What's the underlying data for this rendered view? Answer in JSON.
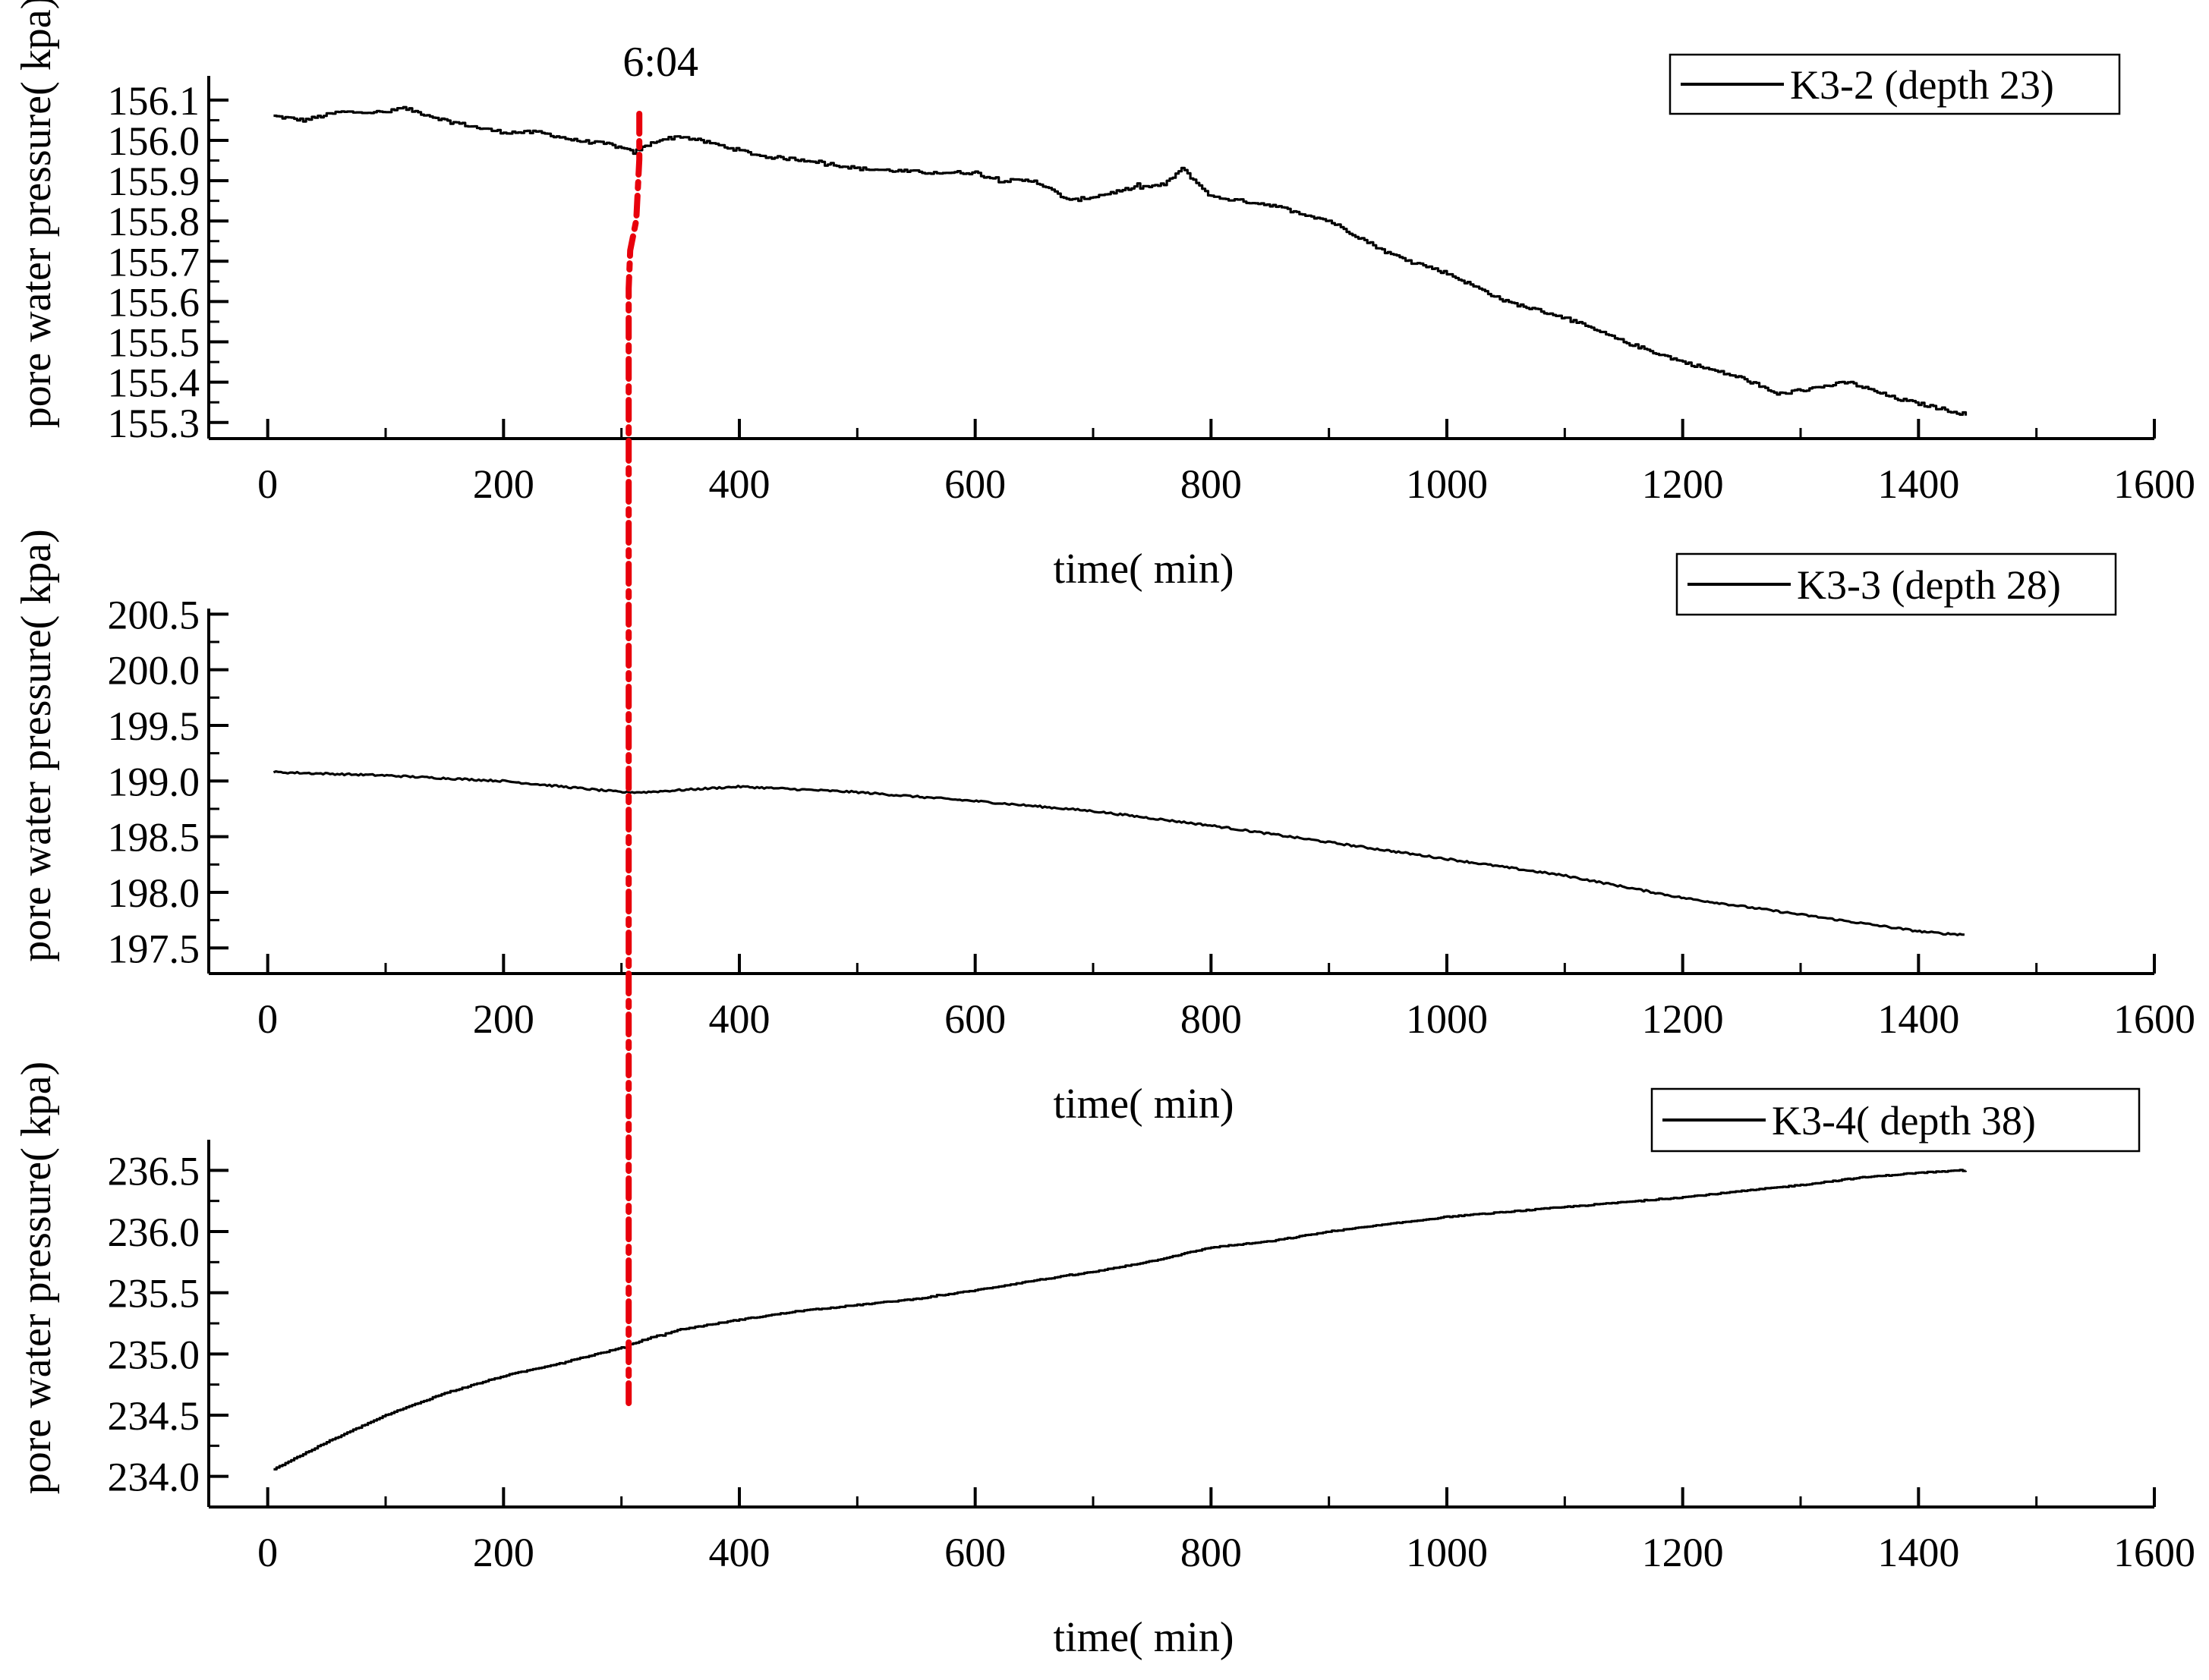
{
  "figure": {
    "annotation": {
      "label": "6:04",
      "x_value": 310,
      "color": "#e8000b"
    }
  },
  "chart_data": [
    {
      "type": "line",
      "title": "",
      "xlabel": "time(   min)",
      "ylabel": "pore water pressure(   kpa)",
      "xlim": [
        -50,
        1600
      ],
      "ylim": [
        155.26,
        156.16
      ],
      "xticks": [
        0,
        200,
        400,
        600,
        800,
        1000,
        1200,
        1400,
        1600
      ],
      "yticks": [
        155.3,
        155.4,
        155.5,
        155.6,
        155.7,
        155.8,
        155.9,
        156.0,
        156.1
      ],
      "ytick_decimals": 1,
      "legend_position": "top-right",
      "series": [
        {
          "name": "K3-2  (depth 23)",
          "noise": 0.004,
          "spikes": null,
          "x": [
            5,
            30,
            60,
            100,
            115,
            150,
            180,
            200,
            230,
            260,
            290,
            310,
            330,
            350,
            380,
            420,
            460,
            500,
            560,
            600,
            620,
            650,
            680,
            700,
            730,
            760,
            775,
            800,
            850,
            900,
            950,
            1000,
            1050,
            1100,
            1150,
            1200,
            1250,
            1280,
            1320,
            1340,
            1380,
            1410,
            1440
          ],
          "y": [
            156.06,
            156.05,
            156.07,
            156.07,
            156.08,
            156.05,
            156.03,
            156.02,
            156.02,
            156.0,
            155.99,
            155.97,
            156.0,
            156.01,
            155.99,
            155.96,
            155.95,
            155.93,
            155.92,
            155.92,
            155.9,
            155.9,
            155.85,
            155.86,
            155.88,
            155.89,
            155.93,
            155.86,
            155.84,
            155.8,
            155.72,
            155.67,
            155.6,
            155.56,
            155.5,
            155.45,
            155.41,
            155.37,
            155.39,
            155.4,
            155.36,
            155.34,
            155.32
          ]
        }
      ]
    },
    {
      "type": "line",
      "title": "",
      "xlabel": "time(   min)",
      "ylabel": "pore water pressure(   kpa)",
      "xlim": [
        -50,
        1600
      ],
      "ylim": [
        197.27,
        200.55
      ],
      "xticks": [
        0,
        200,
        400,
        600,
        800,
        1000,
        1200,
        1400,
        1600
      ],
      "yticks": [
        197.5,
        198.0,
        198.5,
        199.0,
        199.5,
        200.0,
        200.5
      ],
      "ytick_decimals": 1,
      "legend_position": "top-right",
      "series": [
        {
          "name": "K3-3  (depth 28)",
          "noise": 0.008,
          "spikes": {
            "start": 318,
            "step": 4,
            "amp_scale": 0.85
          },
          "x": [
            5,
            100,
            200,
            300,
            320,
            400,
            500,
            600,
            700,
            800,
            900,
            1000,
            1100,
            1200,
            1300,
            1400,
            1420,
            1440
          ],
          "y": [
            199.08,
            199.05,
            199.0,
            198.9,
            198.9,
            198.95,
            198.9,
            198.82,
            198.73,
            198.6,
            198.45,
            198.3,
            198.15,
            197.95,
            197.8,
            197.65,
            197.63,
            197.62
          ]
        }
      ]
    },
    {
      "type": "line",
      "title": "",
      "xlabel": "time(   min)",
      "ylabel": "pore water pressure(   kpa)",
      "xlim": [
        -50,
        1600
      ],
      "ylim": [
        233.75,
        236.75
      ],
      "xticks": [
        0,
        200,
        400,
        600,
        800,
        1000,
        1200,
        1400,
        1600
      ],
      "yticks": [
        234.0,
        234.5,
        235.0,
        235.5,
        236.0,
        236.5
      ],
      "ytick_decimals": 1,
      "legend_position": "top-right",
      "series": [
        {
          "name": "K3-4(   depth 38)",
          "noise": 0.004,
          "spikes": null,
          "x": [
            5,
            50,
            100,
            150,
            200,
            250,
            300,
            320,
            350,
            400,
            450,
            500,
            550,
            600,
            650,
            700,
            750,
            800,
            850,
            900,
            950,
            1000,
            1050,
            1100,
            1150,
            1200,
            1250,
            1300,
            1350,
            1400,
            1440
          ],
          "y": [
            234.06,
            234.28,
            234.5,
            234.68,
            234.82,
            234.93,
            235.05,
            235.12,
            235.2,
            235.28,
            235.35,
            235.4,
            235.45,
            235.52,
            235.6,
            235.67,
            235.76,
            235.87,
            235.92,
            236.0,
            236.06,
            236.12,
            236.16,
            236.2,
            236.24,
            236.28,
            236.33,
            236.38,
            236.44,
            236.48,
            236.5
          ]
        }
      ]
    }
  ]
}
